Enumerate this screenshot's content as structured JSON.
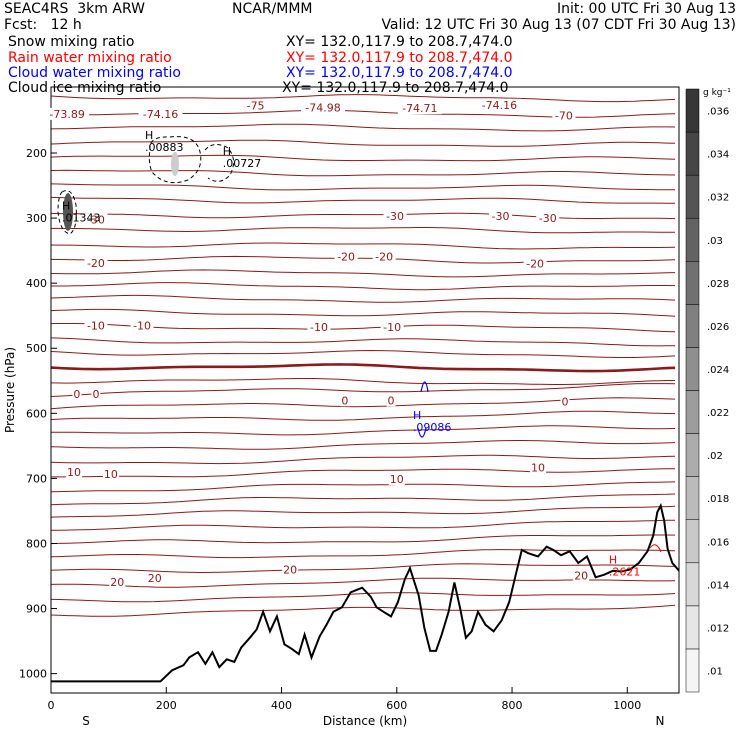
{
  "header": {
    "model": "SEAC4RS  3km ARW",
    "org": "NCAR/MMM",
    "init": "Init: 00 UTC Fri 30 Aug 13",
    "fcst": "Fcst:   12 h",
    "valid": "Valid: 12 UTC Fri 30 Aug 13 (07 CDT Fri 30 Aug 13)"
  },
  "fields": [
    {
      "name": "Snow mixing ratio",
      "xy": "XY= 132.0,117.9 to 208.7,474.0",
      "color": "#000000"
    },
    {
      "name": "Rain water mixing ratio",
      "xy": "XY= 132.0,117.9 to 208.7,474.0",
      "color": "#ff0000"
    },
    {
      "name": "Cloud water mixing ratio",
      "xy": "XY= 132.0,117.9 to 208.7,474.0",
      "color": "#0000ff"
    },
    {
      "name": "Cloud ice mixing ratio",
      "xy": "XY= 132.0,117.9 to 208.7,474.0",
      "color": "#000000"
    }
  ],
  "chart_data": {
    "type": "cross-section",
    "xlabel": "Distance (km)",
    "ylabel": "Pressure (hPa)",
    "xlim": [
      0,
      1090
    ],
    "ylim": [
      1050,
      100
    ],
    "x_ticks": [
      0,
      200,
      400,
      600,
      800,
      1000
    ],
    "y_ticks": [
      200,
      300,
      400,
      500,
      600,
      700,
      800,
      900,
      1000
    ],
    "left_end": "S",
    "right_end": "N",
    "colorbar": {
      "unit": "g kg⁻¹",
      "ticks": [
        ".01",
        ".012",
        ".014",
        ".016",
        ".018",
        ".02",
        ".022",
        ".024",
        ".026",
        ".028",
        ".03",
        ".032",
        ".034",
        ".036"
      ]
    },
    "temperature_color": "#8b1a1a",
    "isotherm_labels": [
      {
        "text": "-73.89",
        "x": 28,
        "p": 140
      },
      {
        "text": "-74.16",
        "x": 190,
        "p": 140
      },
      {
        "text": "-75",
        "x": 355,
        "p": 127
      },
      {
        "text": "-74.98",
        "x": 472,
        "p": 130
      },
      {
        "text": "-74.71",
        "x": 640,
        "p": 131
      },
      {
        "text": "-74.16",
        "x": 778,
        "p": 126
      },
      {
        "text": "-70",
        "x": 890,
        "p": 142
      },
      {
        "text": "-30",
        "x": 78,
        "p": 302
      },
      {
        "text": "-30",
        "x": 597,
        "p": 297
      },
      {
        "text": "-30",
        "x": 780,
        "p": 297
      },
      {
        "text": "-30",
        "x": 862,
        "p": 300
      },
      {
        "text": "-20",
        "x": 78,
        "p": 369
      },
      {
        "text": "-20",
        "x": 512,
        "p": 359
      },
      {
        "text": "-20",
        "x": 578,
        "p": 359
      },
      {
        "text": "-20",
        "x": 840,
        "p": 370
      },
      {
        "text": "-10",
        "x": 78,
        "p": 465
      },
      {
        "text": "-10",
        "x": 158,
        "p": 465
      },
      {
        "text": "-10",
        "x": 465,
        "p": 467
      },
      {
        "text": "-10",
        "x": 592,
        "p": 467
      },
      {
        "text": "0",
        "x": 45,
        "p": 570
      },
      {
        "text": "0",
        "x": 78,
        "p": 570
      },
      {
        "text": "0",
        "x": 510,
        "p": 580
      },
      {
        "text": "0",
        "x": 590,
        "p": 580
      },
      {
        "text": "0",
        "x": 892,
        "p": 582
      },
      {
        "text": "10",
        "x": 40,
        "p": 690
      },
      {
        "text": "10",
        "x": 104,
        "p": 693
      },
      {
        "text": "10",
        "x": 600,
        "p": 701
      },
      {
        "text": "10",
        "x": 845,
        "p": 683
      },
      {
        "text": "20",
        "x": 115,
        "p": 859
      },
      {
        "text": "20",
        "x": 180,
        "p": 853
      },
      {
        "text": "20",
        "x": 415,
        "p": 840
      },
      {
        "text": "20",
        "x": 920,
        "p": 849
      }
    ],
    "extrema": [
      {
        "kind": "H",
        "value": ".00883",
        "x": 170,
        "p": 188,
        "series": "Cloud ice mixing ratio"
      },
      {
        "kind": "H",
        "value": ".00727",
        "x": 305,
        "p": 212,
        "series": "Cloud ice mixing ratio"
      },
      {
        "kind": "H",
        "value": ".01343",
        "x": 26,
        "p": 296,
        "series": "Snow mixing ratio"
      },
      {
        "kind": "H",
        "value": ".09086",
        "x": 635,
        "p": 618,
        "series": "Cloud water mixing ratio"
      },
      {
        "kind": "H",
        "value": ".2621",
        "x": 975,
        "p": 840,
        "series": "Rain water mixing ratio"
      }
    ],
    "terrain": {
      "x": [
        0,
        190,
        210,
        230,
        240,
        255,
        268,
        280,
        292,
        305,
        318,
        330,
        345,
        357,
        368,
        380,
        392,
        405,
        418,
        430,
        440,
        452,
        466,
        478,
        490,
        505,
        520,
        540,
        555,
        565,
        577,
        590,
        602,
        614,
        623,
        630,
        638,
        648,
        658,
        668,
        678,
        690,
        700,
        710,
        720,
        730,
        741,
        754,
        768,
        782,
        795,
        808,
        817,
        828,
        845,
        860,
        872,
        885,
        900,
        915,
        930,
        945,
        960,
        975,
        990,
        1005,
        1020,
        1035,
        1045,
        1052,
        1058,
        1064,
        1070,
        1078,
        1090
      ],
      "p": [
        1012,
        1012,
        995,
        987,
        975,
        967,
        985,
        967,
        990,
        978,
        982,
        960,
        945,
        932,
        905,
        935,
        912,
        955,
        962,
        970,
        940,
        975,
        943,
        925,
        905,
        898,
        875,
        868,
        882,
        898,
        905,
        912,
        890,
        855,
        838,
        858,
        880,
        930,
        965,
        965,
        940,
        905,
        860,
        900,
        945,
        935,
        905,
        925,
        935,
        918,
        890,
        842,
        810,
        815,
        820,
        805,
        810,
        818,
        812,
        830,
        820,
        852,
        848,
        842,
        843,
        840,
        830,
        812,
        788,
        752,
        742,
        765,
        808,
        830,
        842
      ]
    }
  }
}
